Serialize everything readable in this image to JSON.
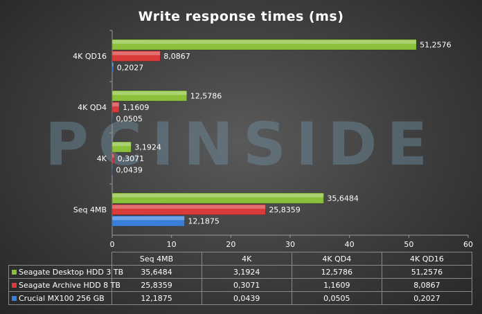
{
  "chart_data": {
    "type": "bar",
    "orientation": "horizontal",
    "title": "Write response times (ms)",
    "categories": [
      "Seq 4MB",
      "4K",
      "4K QD4",
      "4K QD16"
    ],
    "series": [
      {
        "name": "Seagate Desktop HDD 3 TB",
        "color": "#8bc13a",
        "values": [
          35.6484,
          3.1924,
          12.5786,
          51.2576
        ],
        "labels": [
          "35,6484",
          "3,1924",
          "12,5786",
          "51,2576"
        ]
      },
      {
        "name": "Seagate Archive HDD 8 TB",
        "color": "#d93a3a",
        "values": [
          25.8359,
          0.3071,
          1.1609,
          8.0867
        ],
        "labels": [
          "25,8359",
          "0,3071",
          "1,1609",
          "8,0867"
        ]
      },
      {
        "name": "Crucial MX100 256 GB",
        "color": "#3a7fd9",
        "values": [
          12.1875,
          0.0439,
          0.0505,
          0.2027
        ],
        "labels": [
          "12,1875",
          "0,0439",
          "0,0505",
          "0,2027"
        ]
      }
    ],
    "xlim": [
      0,
      60
    ],
    "xticks": [
      0,
      10,
      20,
      30,
      40,
      50,
      60
    ],
    "grid": false,
    "legend": "data-table"
  },
  "watermark": "PCINSIDE"
}
